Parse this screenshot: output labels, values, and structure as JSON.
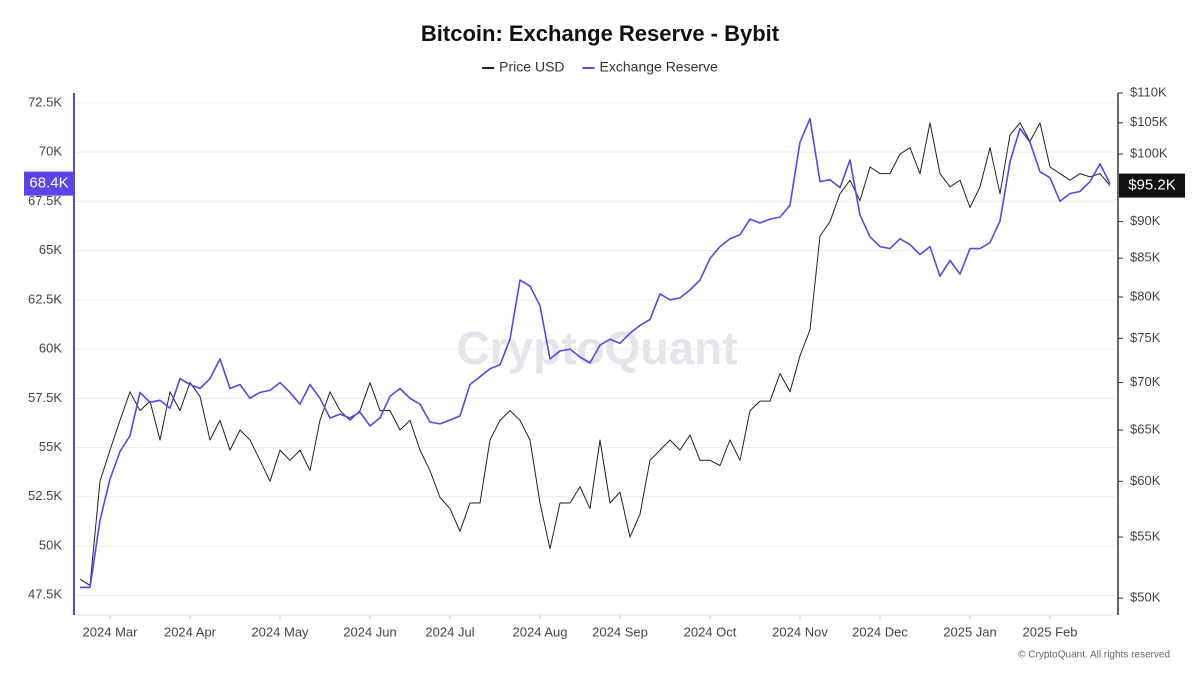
{
  "chart_data": {
    "type": "line",
    "title": "Bitcoin: Exchange Reserve - Bybit",
    "watermark": "CryptoQuant",
    "copyright": "© CryptoQuant. All rights reserved",
    "categories": [
      null,
      null,
      null,
      "2024 Mar",
      null,
      null,
      null,
      null,
      null,
      null,
      null,
      "2024 Apr",
      null,
      null,
      null,
      null,
      null,
      null,
      null,
      null,
      "2024 May",
      null,
      null,
      null,
      null,
      null,
      null,
      null,
      null,
      "2024 Jun",
      null,
      null,
      null,
      null,
      null,
      null,
      null,
      "2024 Jul",
      null,
      null,
      null,
      null,
      null,
      null,
      null,
      null,
      "2024 Aug",
      null,
      null,
      null,
      null,
      null,
      null,
      null,
      "2024 Sep",
      null,
      null,
      null,
      null,
      null,
      null,
      null,
      null,
      "2024 Oct",
      null,
      null,
      null,
      null,
      null,
      null,
      null,
      null,
      "2024 Nov",
      null,
      null,
      null,
      null,
      null,
      null,
      null,
      "2024 Dec",
      null,
      null,
      null,
      null,
      null,
      null,
      null,
      null,
      "2025 Jan",
      null,
      null,
      null,
      null,
      null,
      null,
      null,
      "2025 Feb",
      null,
      null,
      null,
      null,
      null,
      null
    ],
    "series": [
      {
        "name": "Price USD",
        "color": "#222222",
        "axis": "y2",
        "values": [
          51500,
          51000,
          60000,
          63000,
          66000,
          69000,
          67000,
          68000,
          64000,
          69000,
          67000,
          70000,
          68500,
          64000,
          66000,
          63000,
          65000,
          64000,
          62000,
          60000,
          63000,
          62000,
          63000,
          61000,
          66000,
          69000,
          67000,
          66000,
          67000,
          70000,
          67000,
          67000,
          65000,
          66000,
          63000,
          61000,
          58500,
          57500,
          55500,
          58000,
          58000,
          64000,
          66000,
          67000,
          66000,
          64000,
          58000,
          54000,
          58000,
          58000,
          59500,
          57500,
          64000,
          58000,
          59000,
          55000,
          57000,
          62000,
          63000,
          64000,
          63000,
          64500,
          62000,
          62000,
          61500,
          64000,
          62000,
          67000,
          68000,
          68000,
          71000,
          69000,
          73000,
          76000,
          88000,
          90000,
          94000,
          96000,
          93000,
          98000,
          97000,
          97000,
          100000,
          101000,
          97000,
          105000,
          97000,
          95000,
          96000,
          92000,
          95000,
          101000,
          94000,
          103000,
          105000,
          102000,
          105000,
          98000,
          97000,
          96000,
          97000,
          96500,
          97000,
          95200
        ],
        "value_labels": [
          null,
          null,
          null,
          null,
          null,
          null,
          null,
          null,
          null,
          null,
          null,
          null,
          null,
          null,
          null,
          null,
          null,
          null,
          null,
          null,
          null,
          null,
          null,
          null,
          null,
          null,
          null,
          null,
          null,
          null,
          null,
          null,
          null,
          null,
          null,
          null,
          null,
          null,
          null,
          null,
          null,
          null,
          null,
          null,
          null,
          null,
          null,
          null,
          null,
          null,
          null,
          null,
          null,
          null,
          null,
          null,
          null,
          null,
          null,
          null,
          null,
          null,
          null,
          null,
          null,
          null,
          null,
          null,
          null,
          null,
          null,
          null,
          null,
          null,
          null,
          null,
          null,
          null,
          null,
          null,
          null,
          null,
          null,
          null,
          null,
          null,
          null,
          null,
          null,
          null,
          null,
          null,
          null,
          null,
          null,
          null,
          null,
          null,
          null,
          null,
          null,
          null,
          null,
          "$95.2K"
        ]
      },
      {
        "name": "Exchange Reserve",
        "color": "#5b45e8",
        "axis": "y",
        "values": [
          47900,
          47900,
          51300,
          53400,
          54800,
          55600,
          57800,
          57300,
          57400,
          57000,
          58500,
          58200,
          58000,
          58500,
          59500,
          58000,
          58200,
          57500,
          57800,
          57900,
          58300,
          57800,
          57200,
          58200,
          57500,
          56500,
          56700,
          56500,
          56800,
          56100,
          56500,
          57600,
          58000,
          57500,
          57200,
          56300,
          56200,
          56400,
          56600,
          58200,
          58600,
          59000,
          59200,
          60500,
          63500,
          63200,
          62200,
          59500,
          59900,
          60000,
          59600,
          59300,
          60200,
          60500,
          60300,
          60800,
          61200,
          61500,
          62800,
          62500,
          62600,
          63000,
          63500,
          64600,
          65200,
          65600,
          65800,
          66600,
          66400,
          66600,
          66700,
          67300,
          70500,
          71700,
          68500,
          68600,
          68200,
          69600,
          66800,
          65700,
          65200,
          65100,
          65600,
          65300,
          64800,
          65200,
          63700,
          64500,
          63800,
          65100,
          65100,
          65400,
          66500,
          69500,
          71200,
          70500,
          69000,
          68700,
          67500,
          67900,
          68000,
          68500,
          69400,
          68400
        ],
        "value_labels": [
          null,
          null,
          null,
          null,
          null,
          null,
          null,
          null,
          null,
          null,
          null,
          null,
          null,
          null,
          null,
          null,
          null,
          null,
          null,
          null,
          null,
          null,
          null,
          null,
          null,
          null,
          null,
          null,
          null,
          null,
          null,
          null,
          null,
          null,
          null,
          null,
          null,
          null,
          null,
          null,
          null,
          null,
          null,
          null,
          null,
          null,
          null,
          null,
          null,
          null,
          null,
          null,
          null,
          null,
          null,
          null,
          null,
          null,
          null,
          null,
          null,
          null,
          null,
          null,
          null,
          null,
          null,
          null,
          null,
          null,
          null,
          null,
          null,
          null,
          null,
          null,
          null,
          null,
          null,
          null,
          null,
          null,
          null,
          null,
          null,
          null,
          null,
          null,
          null,
          null,
          null,
          null,
          null,
          null,
          null,
          null,
          null,
          null,
          null,
          null,
          null,
          null,
          null,
          "68.4K"
        ]
      }
    ],
    "ylim": [
      46500,
      73000
    ],
    "yticks": [
      {
        "value": 47500,
        "label": "47.5K"
      },
      {
        "value": 50000,
        "label": "50K"
      },
      {
        "value": 52500,
        "label": "52.5K"
      },
      {
        "value": 55000,
        "label": "55K"
      },
      {
        "value": 57500,
        "label": "57.5K"
      },
      {
        "value": 60000,
        "label": "60K"
      },
      {
        "value": 62500,
        "label": "62.5K"
      },
      {
        "value": 65000,
        "label": "65K"
      },
      {
        "value": 67500,
        "label": "67.5K"
      },
      {
        "value": 70000,
        "label": "70K"
      },
      {
        "value": 72500,
        "label": "72.5K"
      }
    ],
    "y2lim": [
      48700,
      110000
    ],
    "y2_log_scale": true,
    "y2ticks": [
      {
        "value": 50000,
        "label": "$50K"
      },
      {
        "value": 55000,
        "label": "$55K"
      },
      {
        "value": 60000,
        "label": "$60K"
      },
      {
        "value": 65000,
        "label": "$65K"
      },
      {
        "value": 70000,
        "label": "$70K"
      },
      {
        "value": 75000,
        "label": "$75K"
      },
      {
        "value": 80000,
        "label": "$80K"
      },
      {
        "value": 85000,
        "label": "$85K"
      },
      {
        "value": 90000,
        "label": "$90K"
      },
      {
        "value": 100000,
        "label": "$100K"
      },
      {
        "value": 105000,
        "label": "$105K"
      },
      {
        "value": 110000,
        "label": "$110K"
      }
    ],
    "grid": true
  }
}
